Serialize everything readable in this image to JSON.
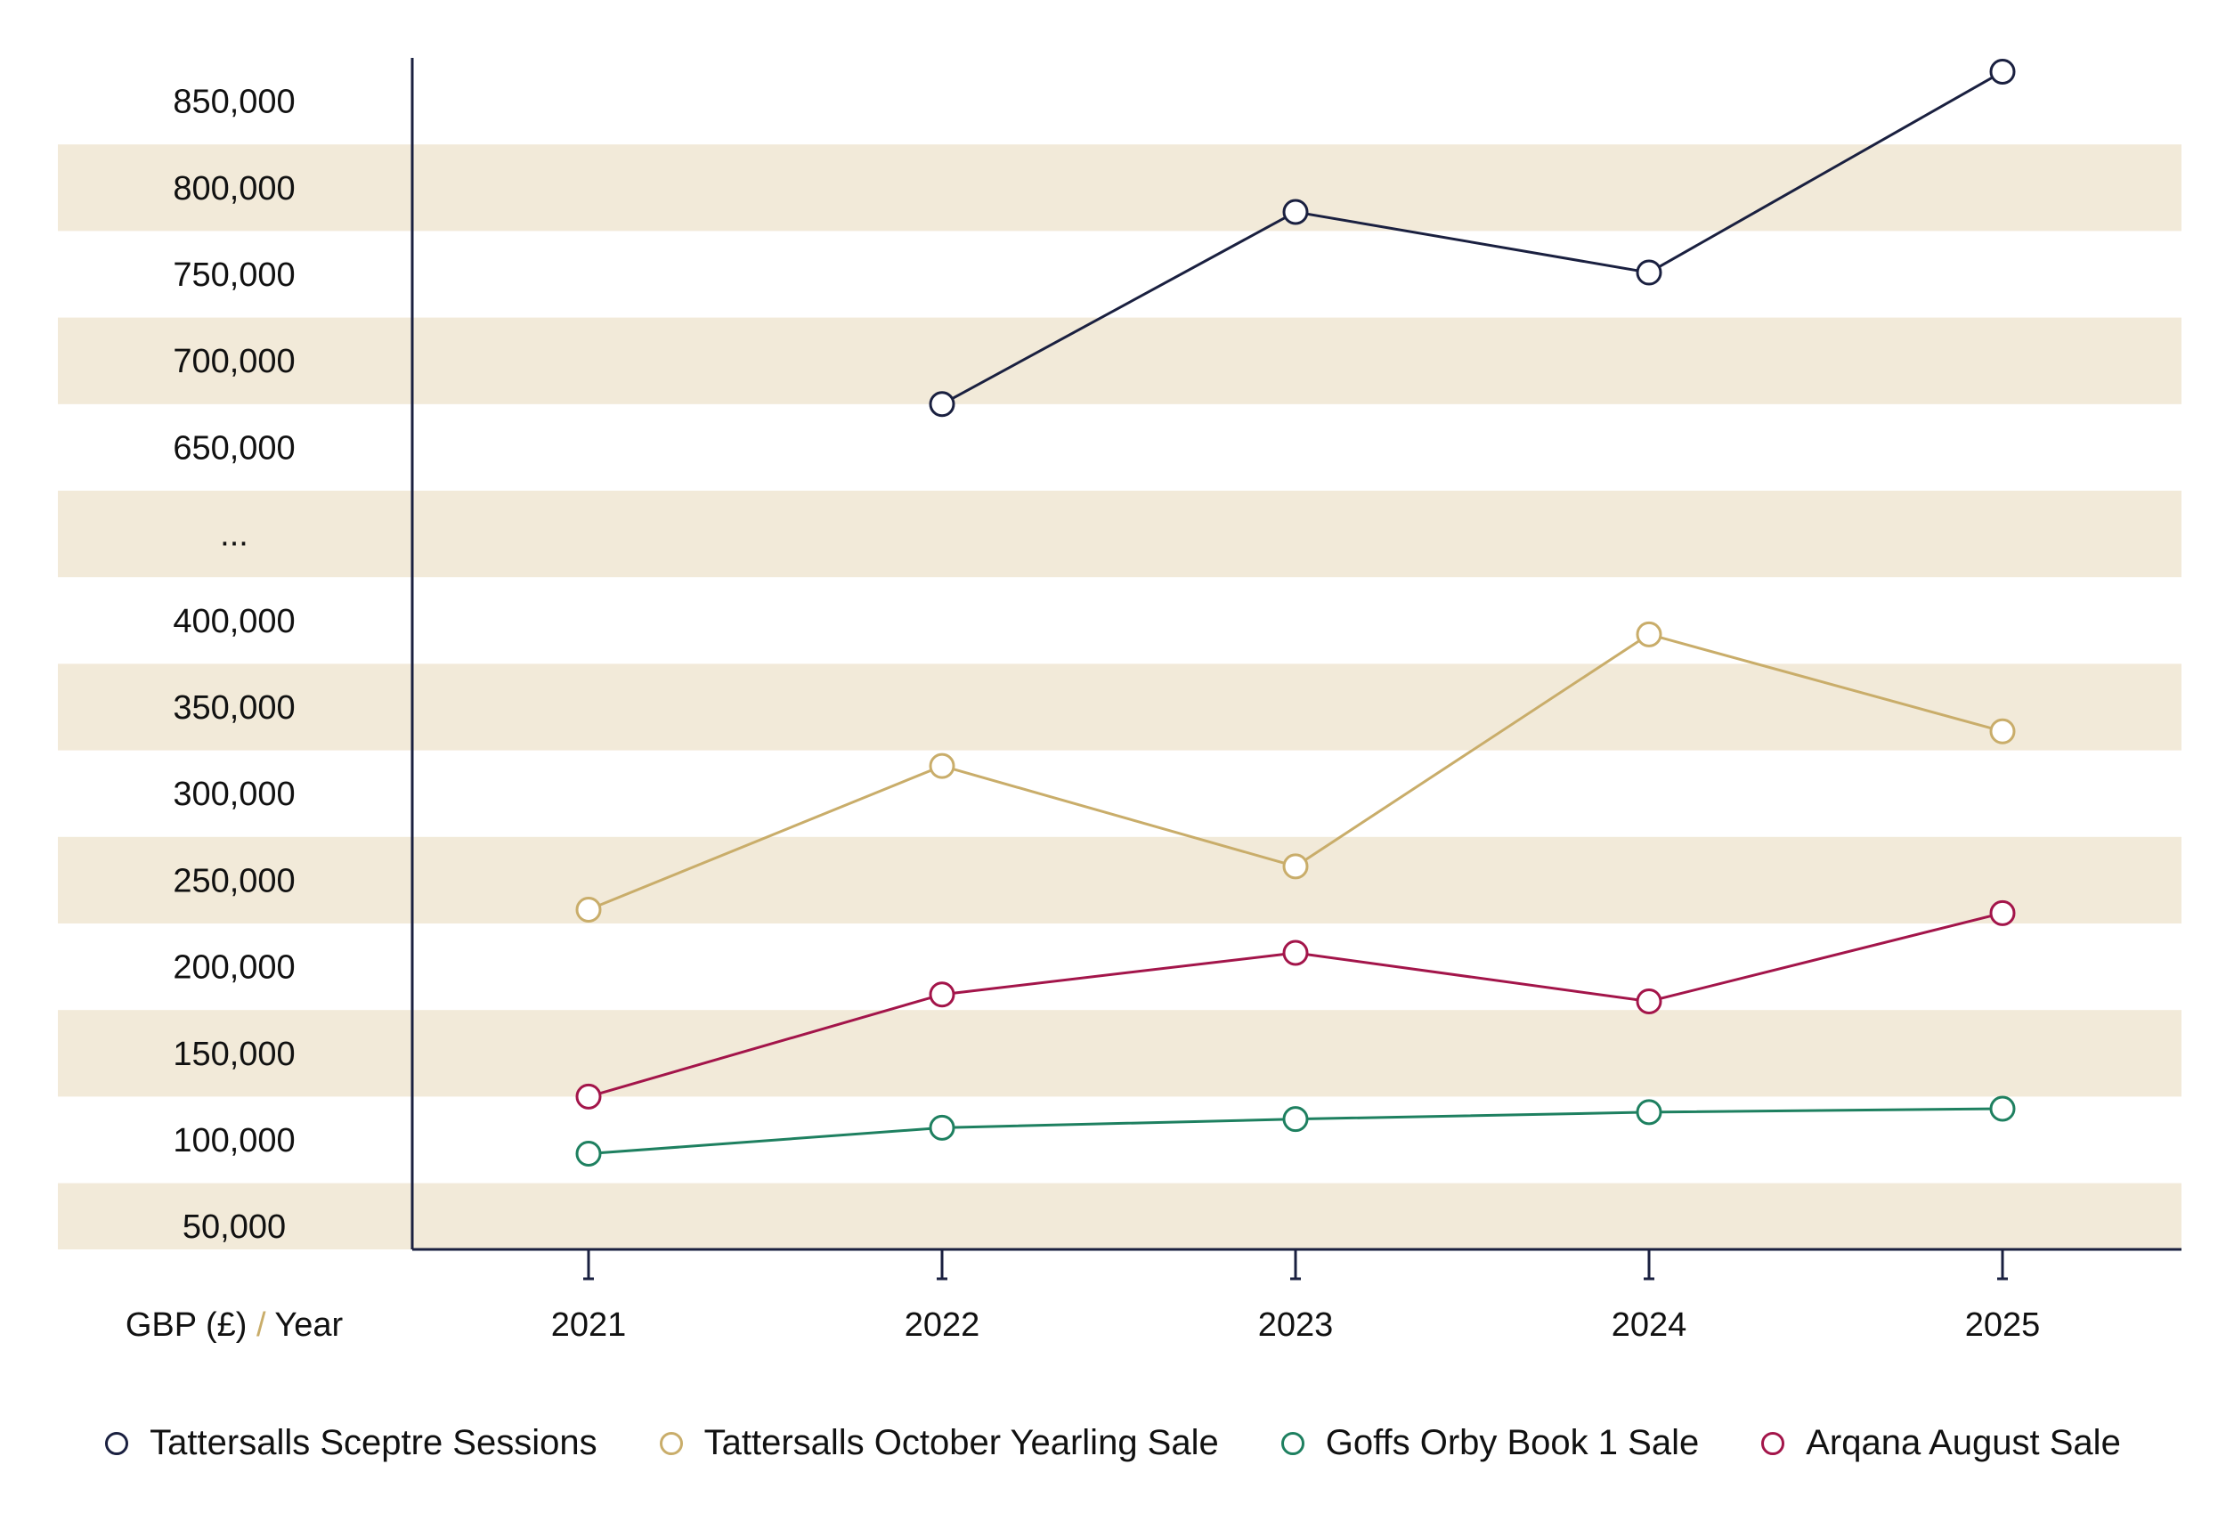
{
  "chart_data": {
    "type": "line",
    "axis_caption": {
      "left": "GBP (£)",
      "separator": "/",
      "right": "Year"
    },
    "categories": [
      "2021",
      "2022",
      "2023",
      "2024",
      "2025"
    ],
    "y_ticks": [
      "850,000",
      "800,000",
      "750,000",
      "700,000",
      "650,000",
      "...",
      "400,000",
      "350,000",
      "300,000",
      "250,000",
      "200,000",
      "150,000",
      "100,000",
      "50,000"
    ],
    "y_axis_break": {
      "between": [
        400000,
        650000
      ],
      "label": "..."
    },
    "ylim": [
      50000,
      850000
    ],
    "grid": "alternating horizontal bands",
    "legend_position": "bottom",
    "series": [
      {
        "name": "Tattersalls Sceptre Sessions",
        "color": "#1a2040",
        "values": [
          null,
          675000,
          786000,
          751000,
          867000
        ]
      },
      {
        "name": "Tattersalls October Yearling Sale",
        "color": "#c9ad6a",
        "values": [
          233000,
          316000,
          258000,
          392000,
          336000
        ]
      },
      {
        "name": "Goffs Orby Book 1 Sale",
        "color": "#1e8060",
        "values": [
          92000,
          107000,
          112000,
          116000,
          118000
        ]
      },
      {
        "name": "Arqana August Sale",
        "color": "#a3154a",
        "values": [
          125000,
          184000,
          208000,
          180000,
          231000
        ]
      }
    ],
    "band_color": "#f2ead9"
  }
}
